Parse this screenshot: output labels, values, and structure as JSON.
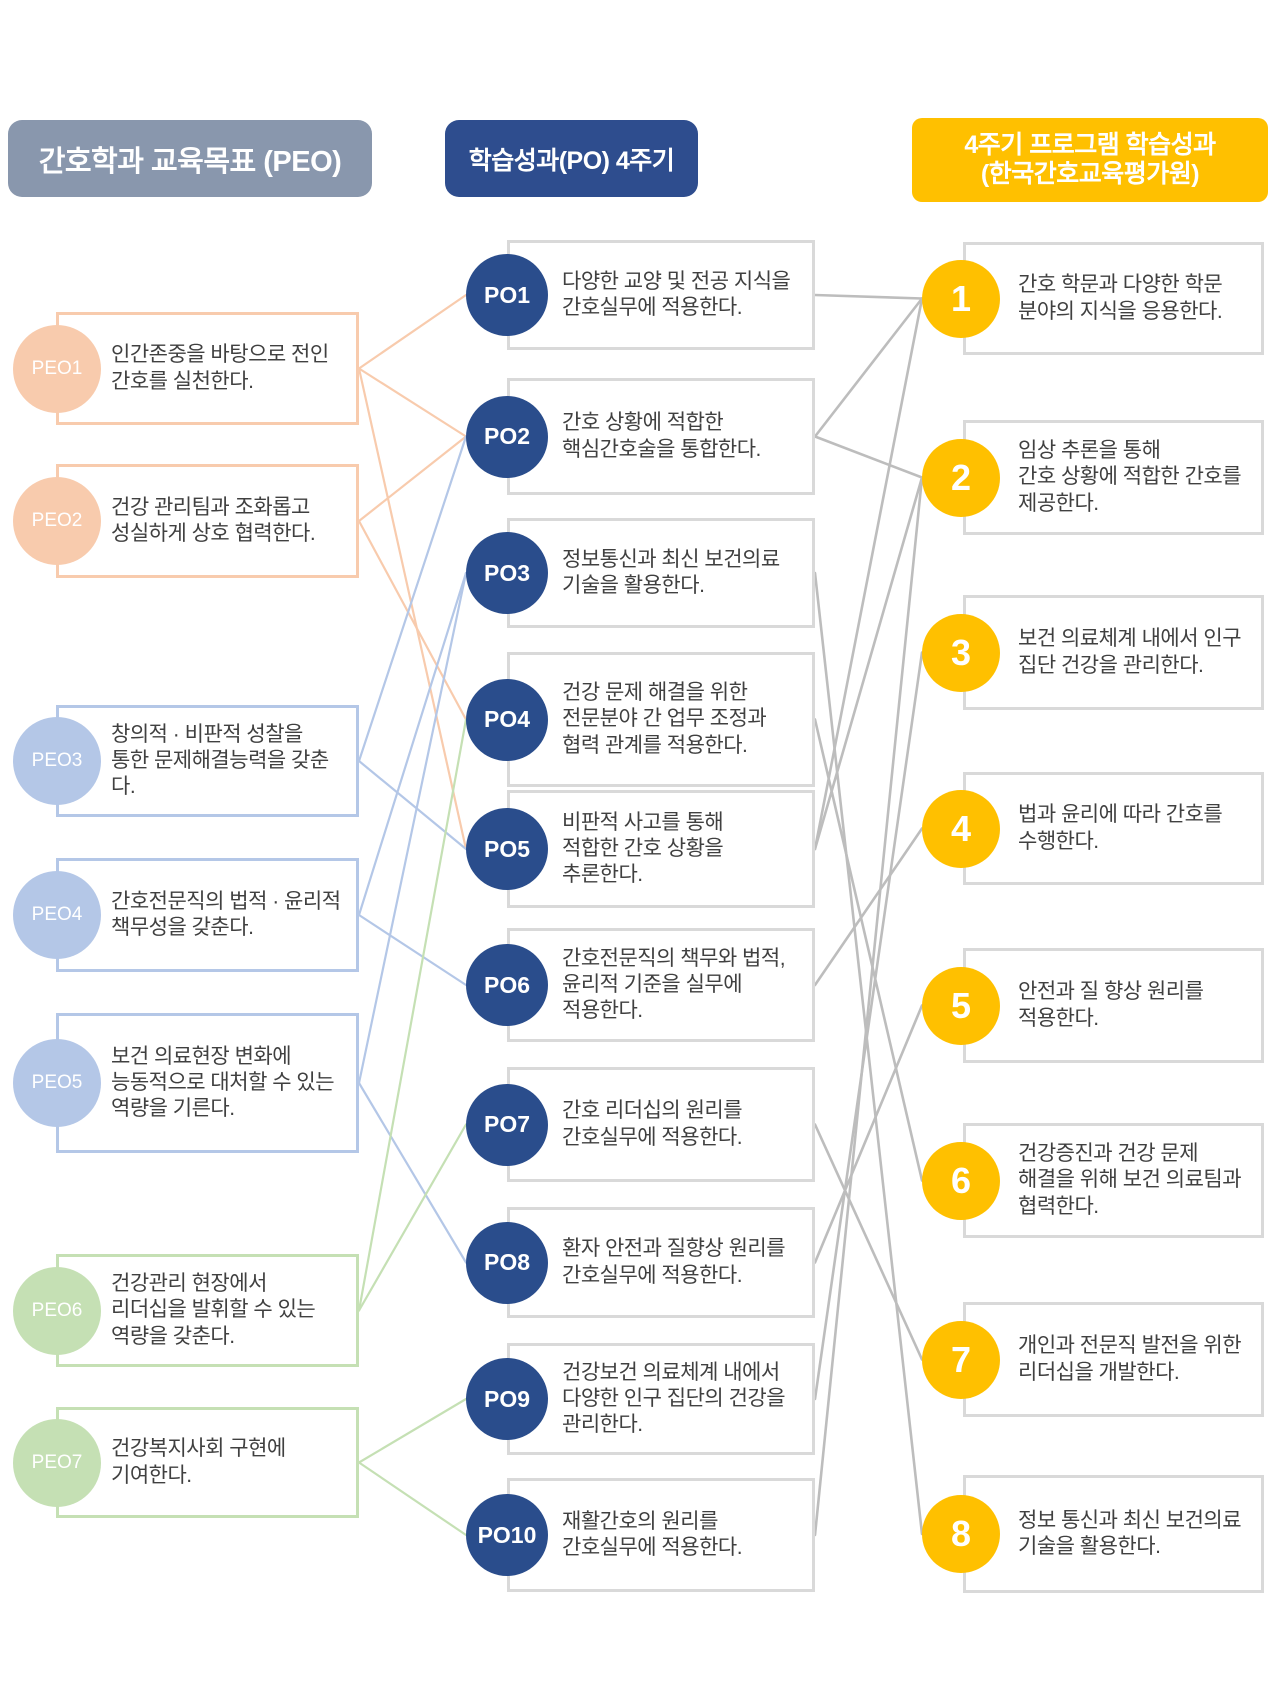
{
  "headers": {
    "left": "간호학과 교육목표 (PEO)",
    "middle": "학습성과(PO) 4주기",
    "right_line1": "4주기 프로그램 학습성과",
    "right_line2": "(한국간호교육평가원)"
  },
  "colors": {
    "header_left_bg": "#8997AD",
    "header_middle_bg": "#2E4D8E",
    "header_right_bg": "#FFC000",
    "peo_peach": "#F8CBAD",
    "peo_blue": "#B4C7E7",
    "peo_green": "#C5E0B4",
    "po_navy": "#2A4D8C",
    "outcome_gold": "#FFC000",
    "box_border_gray": "#D9D9D9",
    "link_gray": "#BDBDBD",
    "text": "#404040"
  },
  "peo": [
    {
      "id": "PEO1",
      "group": "peach",
      "text": "인간존중을 바탕으로 전인\n간호를 실천한다."
    },
    {
      "id": "PEO2",
      "group": "peach",
      "text": "건강 관리팀과 조화롭고\n성실하게 상호 협력한다."
    },
    {
      "id": "PEO3",
      "group": "blue",
      "text": "창의적 · 비판적 성찰을\n통한 문제해결능력을 갖춘다."
    },
    {
      "id": "PEO4",
      "group": "blue",
      "text": "간호전문직의 법적 · 윤리적\n책무성을 갖춘다."
    },
    {
      "id": "PEO5",
      "group": "blue",
      "text": "보건 의료현장 변화에\n능동적으로 대처할 수 있는\n역량을 기른다."
    },
    {
      "id": "PEO6",
      "group": "green",
      "text": "건강관리 현장에서\n리더십을 발휘할 수 있는\n역량을 갖춘다."
    },
    {
      "id": "PEO7",
      "group": "green",
      "text": "건강복지사회 구현에\n기여한다."
    }
  ],
  "po": [
    {
      "id": "PO1",
      "text": "다양한 교양 및 전공 지식을\n간호실무에 적용한다."
    },
    {
      "id": "PO2",
      "text": "간호 상황에 적합한\n핵심간호술을 통합한다."
    },
    {
      "id": "PO3",
      "text": "정보통신과 최신 보건의료\n기술을 활용한다."
    },
    {
      "id": "PO4",
      "text": "건강 문제 해결을 위한\n전문분야 간 업무 조정과\n협력 관계를 적용한다."
    },
    {
      "id": "PO5",
      "text": "비판적 사고를 통해\n적합한 간호 상황을\n추론한다."
    },
    {
      "id": "PO6",
      "text": "간호전문직의 책무와 법적,\n윤리적 기준을 실무에\n적용한다."
    },
    {
      "id": "PO7",
      "text": "간호 리더십의 원리를\n간호실무에 적용한다."
    },
    {
      "id": "PO8",
      "text": "환자 안전과 질향상 원리를\n간호실무에 적용한다."
    },
    {
      "id": "PO9",
      "text": "건강보건 의료체계 내에서\n다양한 인구 집단의 건강을\n관리한다."
    },
    {
      "id": "PO10",
      "text": "재활간호의 원리를\n간호실무에 적용한다."
    }
  ],
  "outcomes": [
    {
      "id": "1",
      "text": "간호 학문과 다양한 학문\n분야의 지식을 응용한다."
    },
    {
      "id": "2",
      "text": "임상 추론을 통해\n간호 상황에 적합한 간호를\n제공한다."
    },
    {
      "id": "3",
      "text": "보건 의료체계 내에서 인구\n집단 건강을 관리한다."
    },
    {
      "id": "4",
      "text": "법과 윤리에 따라 간호를\n수행한다."
    },
    {
      "id": "5",
      "text": "안전과 질 향상 원리를\n적용한다."
    },
    {
      "id": "6",
      "text": "건강증진과 건강 문제\n해결을 위해 보건 의료팀과\n협력한다."
    },
    {
      "id": "7",
      "text": "개인과 전문직 발전을 위한\n리더십을 개발한다."
    },
    {
      "id": "8",
      "text": "정보 통신과 최신 보건의료\n기술을 활용한다."
    }
  ],
  "links": {
    "peo_po": [
      [
        "PEO1",
        "PO1"
      ],
      [
        "PEO1",
        "PO2"
      ],
      [
        "PEO1",
        "PO5"
      ],
      [
        "PEO2",
        "PO2"
      ],
      [
        "PEO2",
        "PO4"
      ],
      [
        "PEO3",
        "PO2"
      ],
      [
        "PEO3",
        "PO5"
      ],
      [
        "PEO4",
        "PO3"
      ],
      [
        "PEO4",
        "PO6"
      ],
      [
        "PEO5",
        "PO3"
      ],
      [
        "PEO5",
        "PO8"
      ],
      [
        "PEO6",
        "PO4"
      ],
      [
        "PEO6",
        "PO7"
      ],
      [
        "PEO7",
        "PO9"
      ],
      [
        "PEO7",
        "PO10"
      ]
    ],
    "po_outcome": [
      [
        "PO1",
        "1"
      ],
      [
        "PO2",
        "1"
      ],
      [
        "PO5",
        "1"
      ],
      [
        "PO2",
        "2"
      ],
      [
        "PO5",
        "2"
      ],
      [
        "PO10",
        "2"
      ],
      [
        "PO9",
        "3"
      ],
      [
        "PO6",
        "4"
      ],
      [
        "PO8",
        "5"
      ],
      [
        "PO4",
        "6"
      ],
      [
        "PO7",
        "7"
      ],
      [
        "PO3",
        "8"
      ]
    ]
  }
}
